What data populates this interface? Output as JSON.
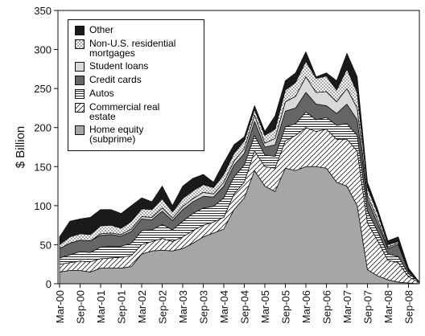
{
  "chart_data": {
    "type": "stacked-area",
    "y_label": "$ Billion",
    "categories": [
      "Mar-00",
      null,
      "Sep-00",
      null,
      "Mar-01",
      null,
      "Sep-01",
      null,
      "Mar-02",
      null,
      "Sep-02",
      null,
      "Mar-03",
      null,
      "Sep-03",
      null,
      "Mar-04",
      null,
      "Sep-04",
      null,
      "Mar-05",
      null,
      "Sep-05",
      null,
      "Mar-06",
      null,
      "Sep-06",
      null,
      "Mar-07",
      null,
      "Sep-07",
      null,
      "Mar-08",
      null,
      "Sep-08",
      null
    ],
    "ylim": [
      0,
      350
    ],
    "yticks": [
      0,
      50,
      100,
      150,
      200,
      250,
      300,
      350
    ],
    "legend": "top-left",
    "series": [
      {
        "name": "Home equity (subprime)",
        "color": "#a6a6a6",
        "pattern": "solid",
        "values": [
          15,
          17,
          17,
          15,
          20,
          20,
          20,
          22,
          38,
          42,
          43,
          42,
          45,
          52,
          60,
          65,
          70,
          95,
          110,
          145,
          125,
          118,
          148,
          145,
          150,
          150,
          148,
          130,
          125,
          100,
          18,
          10,
          5,
          2,
          1,
          0
        ]
      },
      {
        "name": "Commercial real estate",
        "color": "#ffffff",
        "pattern": "diagonal",
        "values": [
          10,
          10,
          12,
          13,
          12,
          13,
          14,
          14,
          12,
          12,
          15,
          12,
          15,
          16,
          15,
          14,
          15,
          20,
          20,
          25,
          25,
          30,
          35,
          45,
          50,
          45,
          50,
          55,
          60,
          70,
          60,
          45,
          25,
          25,
          8,
          2
        ]
      },
      {
        "name": "Autos",
        "color": "#ffffff",
        "pattern": "horizontal",
        "values": [
          8,
          10,
          12,
          12,
          15,
          15,
          14,
          16,
          18,
          15,
          18,
          15,
          20,
          22,
          22,
          20,
          25,
          22,
          22,
          20,
          15,
          15,
          18,
          15,
          20,
          15,
          15,
          18,
          20,
          20,
          15,
          12,
          8,
          8,
          4,
          1
        ]
      },
      {
        "name": "Credit cards",
        "color": "#666666",
        "pattern": "solid",
        "values": [
          12,
          15,
          15,
          15,
          15,
          15,
          13,
          15,
          15,
          13,
          17,
          12,
          15,
          15,
          15,
          12,
          15,
          15,
          15,
          18,
          10,
          15,
          20,
          20,
          25,
          20,
          15,
          15,
          25,
          20,
          15,
          10,
          7,
          15,
          3,
          0
        ]
      },
      {
        "name": "Student loans",
        "color": "#d9d9d9",
        "pattern": "solid",
        "values": [
          0,
          0,
          0,
          0,
          2,
          2,
          2,
          3,
          3,
          3,
          4,
          3,
          4,
          4,
          5,
          4,
          5,
          5,
          6,
          8,
          5,
          8,
          12,
          15,
          20,
          15,
          18,
          15,
          20,
          15,
          5,
          5,
          2,
          2,
          1,
          0
        ]
      },
      {
        "name": "Non-U.S. residential mortgages",
        "color": "#ffffff",
        "pattern": "dots",
        "values": [
          5,
          8,
          8,
          8,
          10,
          10,
          8,
          10,
          10,
          10,
          12,
          8,
          10,
          10,
          10,
          8,
          10,
          10,
          10,
          7,
          10,
          12,
          15,
          18,
          20,
          18,
          20,
          15,
          25,
          20,
          10,
          8,
          3,
          2,
          1,
          0
        ]
      },
      {
        "name": "Other",
        "color": "#1a1a1a",
        "pattern": "solid",
        "values": [
          10,
          20,
          19,
          22,
          21,
          20,
          19,
          20,
          14,
          10,
          16,
          8,
          16,
          16,
          13,
          7,
          15,
          11,
          5,
          5,
          5,
          17,
          12,
          12,
          12,
          2,
          4,
          12,
          20,
          20,
          7,
          5,
          5,
          6,
          2,
          0
        ]
      }
    ]
  }
}
